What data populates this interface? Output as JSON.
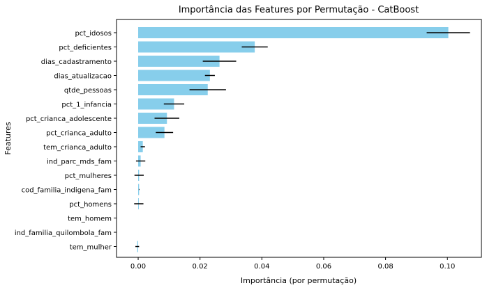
{
  "chart_data": {
    "type": "bar",
    "orientation": "horizontal",
    "title": "Importância das Features por Permutação - CatBoost",
    "xlabel": "Importância (por permutação)",
    "ylabel": "Features",
    "xlim": [
      -0.007,
      0.111
    ],
    "xticks": [
      0.0,
      0.02,
      0.04,
      0.06,
      0.08,
      0.1
    ],
    "xtick_labels": [
      "0.00",
      "0.02",
      "0.04",
      "0.06",
      "0.08",
      "0.10"
    ],
    "bar_color": "#87ceeb",
    "error_color": "#000000",
    "grid": false,
    "categories": [
      "pct_idosos",
      "pct_deficientes",
      "dias_cadastramento",
      "dias_atualizacao",
      "qtde_pessoas",
      "pct_1_infancia",
      "pct_crianca_adolescente",
      "pct_crianca_adulto",
      "tem_crianca_adulto",
      "ind_parc_mds_fam",
      "pct_mulheres",
      "cod_familia_indigena_fam",
      "pct_homens",
      "tem_homem",
      "ind_familia_quilombola_fam",
      "tem_mulher"
    ],
    "values": [
      0.1003,
      0.0377,
      0.0263,
      0.0232,
      0.0225,
      0.0116,
      0.0093,
      0.0085,
      0.0015,
      0.0008,
      0.0003,
      0.0003,
      0.0002,
      0.0,
      0.0,
      -0.0003
    ],
    "errors": [
      0.007,
      0.0042,
      0.0054,
      0.0016,
      0.0059,
      0.0033,
      0.004,
      0.0028,
      0.0007,
      0.0015,
      0.0015,
      0.0001,
      0.0015,
      0.0,
      0.0,
      0.0006
    ]
  }
}
